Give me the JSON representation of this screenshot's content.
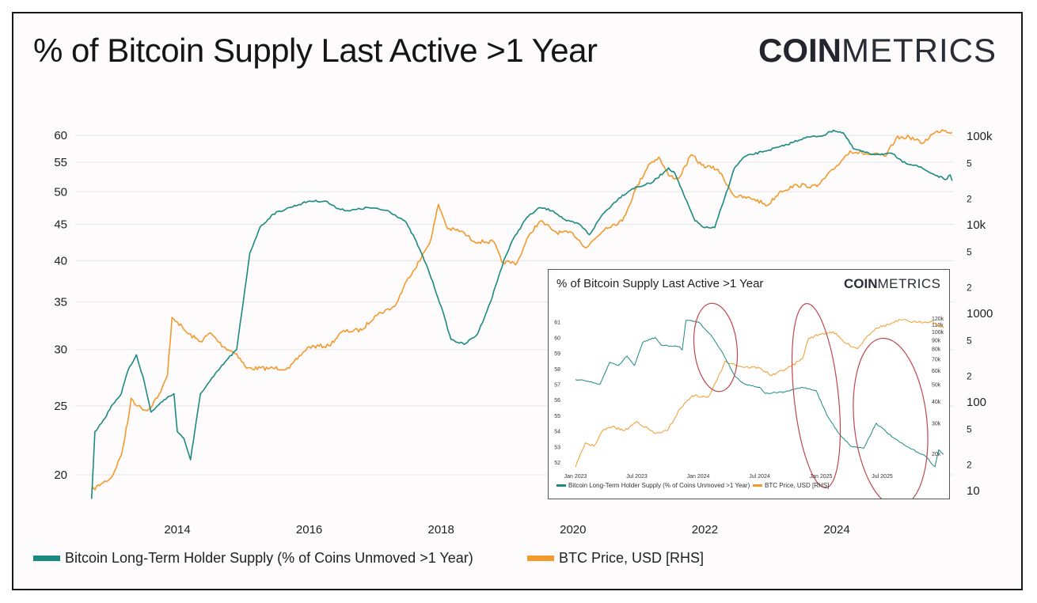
{
  "colors": {
    "lth": "#1b8a80",
    "price": "#f39a2c",
    "circle": "#c0474f",
    "grid": "#e6e6e6"
  },
  "header": {
    "title": "% of Bitcoin Supply Last Active >1 Year",
    "logo_bold": "COIN",
    "logo_light": "METRICS"
  },
  "chart_data": [
    {
      "type": "line",
      "title": "% of Bitcoin Supply Last Active >1 Year",
      "x_ticks": [
        "2014",
        "2016",
        "2018",
        "2020",
        "2022",
        "2024"
      ],
      "y_left_ticks": [
        "20",
        "25",
        "30",
        "35",
        "40",
        "45",
        "50",
        "55",
        "60"
      ],
      "y_left_scale": "log",
      "y_right_ticks": [
        "10",
        "2",
        "5",
        "100",
        "2",
        "5",
        "1000",
        "2",
        "5",
        "10k",
        "2",
        "5",
        "100k"
      ],
      "y_right_scale": "log",
      "grid": true,
      "legend": "bottom",
      "series": [
        {
          "name": "Bitcoin Long-Term Holder Supply (% of Coins Unmoved >1 Year)",
          "axis": "left",
          "points": [
            [
              2012.7,
              18.5
            ],
            [
              2012.75,
              23
            ],
            [
              2012.9,
              24
            ],
            [
              2013.0,
              25
            ],
            [
              2013.15,
              26
            ],
            [
              2013.25,
              28
            ],
            [
              2013.38,
              29.5
            ],
            [
              2013.5,
              27
            ],
            [
              2013.6,
              24.5
            ],
            [
              2013.8,
              25.5
            ],
            [
              2013.95,
              26
            ],
            [
              2014.0,
              23
            ],
            [
              2014.1,
              22.5
            ],
            [
              2014.2,
              21
            ],
            [
              2014.25,
              22.5
            ],
            [
              2014.35,
              26
            ],
            [
              2014.55,
              27.5
            ],
            [
              2014.75,
              29
            ],
            [
              2014.9,
              30
            ],
            [
              2015.0,
              35
            ],
            [
              2015.1,
              41
            ],
            [
              2015.25,
              44.5
            ],
            [
              2015.45,
              46.5
            ],
            [
              2015.7,
              47.5
            ],
            [
              2016.0,
              48.5
            ],
            [
              2016.25,
              48.5
            ],
            [
              2016.4,
              47.5
            ],
            [
              2016.6,
              47
            ],
            [
              2016.9,
              47.5
            ],
            [
              2017.2,
              47
            ],
            [
              2017.45,
              45.5
            ],
            [
              2017.6,
              43
            ],
            [
              2017.8,
              39
            ],
            [
              2018.0,
              34.5
            ],
            [
              2018.15,
              31
            ],
            [
              2018.35,
              30.5
            ],
            [
              2018.55,
              31.5
            ],
            [
              2018.75,
              35
            ],
            [
              2018.95,
              40
            ],
            [
              2019.1,
              43
            ],
            [
              2019.3,
              46
            ],
            [
              2019.5,
              47.5
            ],
            [
              2019.7,
              47
            ],
            [
              2019.9,
              45.5
            ],
            [
              2020.1,
              45
            ],
            [
              2020.25,
              43.5
            ],
            [
              2020.45,
              46.5
            ],
            [
              2020.7,
              49
            ],
            [
              2020.9,
              50.5
            ],
            [
              2021.2,
              51.5
            ],
            [
              2021.45,
              54
            ],
            [
              2021.55,
              53
            ],
            [
              2021.7,
              49
            ],
            [
              2021.85,
              45.5
            ],
            [
              2022.0,
              44.5
            ],
            [
              2022.15,
              44.5
            ],
            [
              2022.3,
              49
            ],
            [
              2022.45,
              54
            ],
            [
              2022.6,
              56
            ],
            [
              2022.9,
              57
            ],
            [
              2023.2,
              58
            ],
            [
              2023.5,
              59.5
            ],
            [
              2023.8,
              60
            ],
            [
              2023.95,
              61
            ],
            [
              2024.1,
              60.5
            ],
            [
              2024.25,
              57.5
            ],
            [
              2024.5,
              56.5
            ],
            [
              2024.85,
              56.5
            ],
            [
              2025.0,
              55
            ],
            [
              2025.2,
              54.5
            ],
            [
              2025.45,
              53
            ],
            [
              2025.65,
              52
            ],
            [
              2025.72,
              52.8
            ],
            [
              2025.75,
              51.8
            ]
          ]
        },
        {
          "name": "BTC Price, USD [RHS]",
          "axis": "right",
          "points": [
            [
              2012.7,
              10
            ],
            [
              2012.85,
              12
            ],
            [
              2013.0,
              14
            ],
            [
              2013.15,
              25
            ],
            [
              2013.25,
              60
            ],
            [
              2013.3,
              110
            ],
            [
              2013.4,
              90
            ],
            [
              2013.55,
              80
            ],
            [
              2013.75,
              130
            ],
            [
              2013.85,
              200
            ],
            [
              2013.92,
              900
            ],
            [
              2014.0,
              800
            ],
            [
              2014.15,
              600
            ],
            [
              2014.35,
              480
            ],
            [
              2014.5,
              600
            ],
            [
              2014.7,
              420
            ],
            [
              2014.9,
              350
            ],
            [
              2015.05,
              240
            ],
            [
              2015.4,
              240
            ],
            [
              2015.7,
              240
            ],
            [
              2015.9,
              360
            ],
            [
              2016.0,
              420
            ],
            [
              2016.3,
              430
            ],
            [
              2016.5,
              620
            ],
            [
              2016.8,
              650
            ],
            [
              2017.0,
              950
            ],
            [
              2017.3,
              1200
            ],
            [
              2017.5,
              2500
            ],
            [
              2017.7,
              4200
            ],
            [
              2017.85,
              7000
            ],
            [
              2017.96,
              17000
            ],
            [
              2018.1,
              9000
            ],
            [
              2018.3,
              8500
            ],
            [
              2018.5,
              6500
            ],
            [
              2018.8,
              6400
            ],
            [
              2018.92,
              3800
            ],
            [
              2019.15,
              3700
            ],
            [
              2019.35,
              8000
            ],
            [
              2019.5,
              11000
            ],
            [
              2019.75,
              8200
            ],
            [
              2020.0,
              8000
            ],
            [
              2020.2,
              5500
            ],
            [
              2020.5,
              9300
            ],
            [
              2020.75,
              11000
            ],
            [
              2020.95,
              25000
            ],
            [
              2021.15,
              48000
            ],
            [
              2021.3,
              58000
            ],
            [
              2021.45,
              36000
            ],
            [
              2021.6,
              33000
            ],
            [
              2021.8,
              62000
            ],
            [
              2021.95,
              47000
            ],
            [
              2022.2,
              42000
            ],
            [
              2022.45,
              21000
            ],
            [
              2022.75,
              19500
            ],
            [
              2022.95,
              16500
            ],
            [
              2023.15,
              24000
            ],
            [
              2023.4,
              28000
            ],
            [
              2023.7,
              27000
            ],
            [
              2023.95,
              42000
            ],
            [
              2024.2,
              68000
            ],
            [
              2024.5,
              62000
            ],
            [
              2024.75,
              60000
            ],
            [
              2024.9,
              95000
            ],
            [
              2025.1,
              98000
            ],
            [
              2025.3,
              83000
            ],
            [
              2025.45,
              105000
            ],
            [
              2025.6,
              118000
            ],
            [
              2025.75,
              110000
            ]
          ]
        }
      ]
    },
    {
      "type": "line",
      "title": "% of Bitcoin Supply Last Active >1 Year",
      "x_ticks": [
        "Jan 2023",
        "Jul 2023",
        "Jan 2024",
        "Jul 2024",
        "Jan 2025",
        "Jul 2025"
      ],
      "y_left_ticks": [
        "52",
        "53",
        "54",
        "55",
        "56",
        "57",
        "58",
        "59",
        "60",
        "61"
      ],
      "y_right_ticks": [
        "20k",
        "30k",
        "40k",
        "50k",
        "60k",
        "70k",
        "80k",
        "90k",
        "100k",
        "110k",
        "120k"
      ],
      "y_right_scale": "log",
      "annotations": "three red ellipses highlighting LTH supply declines (early 2024, late 2024, mid 2025)",
      "legend": "bottom",
      "series": [
        {
          "name": "Bitcoin Long-Term Holder Supply (% of Coins Unmoved >1 Year)",
          "axis": "left",
          "points": [
            [
              2023.0,
              57.3
            ],
            [
              2023.1,
              57.2
            ],
            [
              2023.2,
              57.0
            ],
            [
              2023.28,
              58.4
            ],
            [
              2023.35,
              58.2
            ],
            [
              2023.42,
              58.8
            ],
            [
              2023.48,
              58.2
            ],
            [
              2023.55,
              59.7
            ],
            [
              2023.65,
              60.0
            ],
            [
              2023.7,
              59.5
            ],
            [
              2023.85,
              59.4
            ],
            [
              2023.87,
              59.2
            ],
            [
              2023.9,
              61.1
            ],
            [
              2024.0,
              61.0
            ],
            [
              2024.1,
              60.2
            ],
            [
              2024.2,
              59.0
            ],
            [
              2024.3,
              57.5
            ],
            [
              2024.38,
              57.0
            ],
            [
              2024.5,
              56.8
            ],
            [
              2024.55,
              56.4
            ],
            [
              2024.7,
              56.5
            ],
            [
              2024.85,
              56.8
            ],
            [
              2024.96,
              56.6
            ],
            [
              2025.05,
              55.0
            ],
            [
              2025.15,
              53.8
            ],
            [
              2025.25,
              53.0
            ],
            [
              2025.35,
              52.9
            ],
            [
              2025.45,
              54.5
            ],
            [
              2025.6,
              53.5
            ],
            [
              2025.7,
              53.0
            ],
            [
              2025.85,
              52.4
            ],
            [
              2025.93,
              51.7
            ],
            [
              2025.96,
              52.8
            ],
            [
              2026.0,
              52.5
            ]
          ]
        },
        {
          "name": "BTC Price, USD [RHS]",
          "axis": "right",
          "points": [
            [
              2023.0,
              16700
            ],
            [
              2023.08,
              23000
            ],
            [
              2023.15,
              22000
            ],
            [
              2023.22,
              27000
            ],
            [
              2023.3,
              28500
            ],
            [
              2023.4,
              27000
            ],
            [
              2023.5,
              30500
            ],
            [
              2023.65,
              26000
            ],
            [
              2023.75,
              27000
            ],
            [
              2023.85,
              36000
            ],
            [
              2023.95,
              43000
            ],
            [
              2024.08,
              42000
            ],
            [
              2024.15,
              52000
            ],
            [
              2024.22,
              68000
            ],
            [
              2024.35,
              63000
            ],
            [
              2024.5,
              62000
            ],
            [
              2024.6,
              56000
            ],
            [
              2024.75,
              63000
            ],
            [
              2024.85,
              70000
            ],
            [
              2024.9,
              92000
            ],
            [
              2025.0,
              97000
            ],
            [
              2025.1,
              100000
            ],
            [
              2025.2,
              86000
            ],
            [
              2025.3,
              80000
            ],
            [
              2025.38,
              95000
            ],
            [
              2025.45,
              105000
            ],
            [
              2025.55,
              110000
            ],
            [
              2025.65,
              117000
            ],
            [
              2025.78,
              113000
            ],
            [
              2025.9,
              115000
            ],
            [
              2026.0,
              105000
            ]
          ]
        }
      ]
    }
  ],
  "legend": {
    "lth": "Bitcoin Long-Term Holder Supply (% of Coins Unmoved >1 Year)",
    "price": "BTC Price, USD [RHS]"
  },
  "inset": {
    "title": "% of Bitcoin Supply Last Active >1 Year",
    "logo_bold": "COIN",
    "logo_light": "METRICS",
    "legend": {
      "lth": "Bitcoin Long-Term Holder Supply (% of Coins Unmoved >1 Year)",
      "price": "BTC Price, USD [RHS]"
    }
  }
}
